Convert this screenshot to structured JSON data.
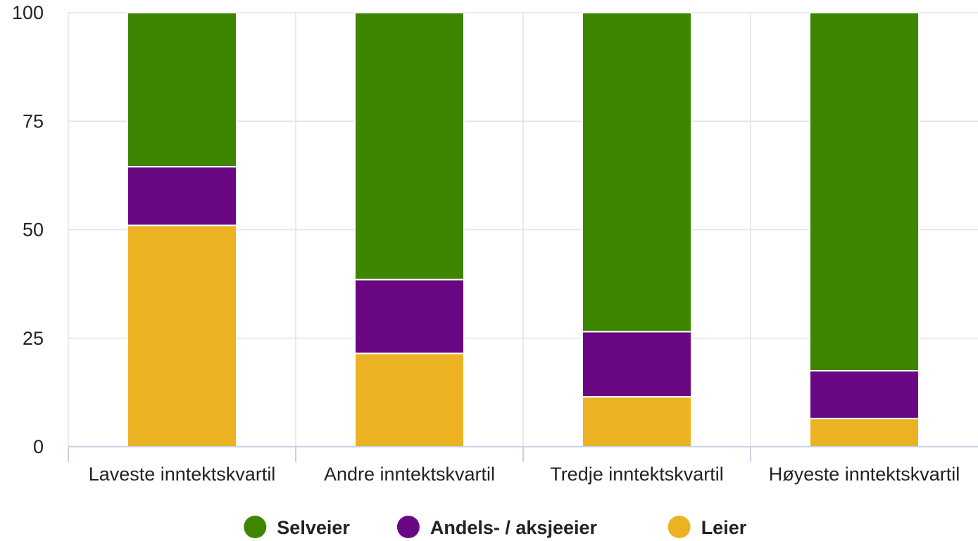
{
  "chart_data": {
    "type": "bar",
    "stacked": true,
    "categories": [
      "Laveste inntektskvartil",
      "Andre inntektskvartil",
      "Tredje inntektskvartil",
      "Høyeste inntektskvartil"
    ],
    "series": [
      {
        "name": "Leier",
        "color": "#EBB323",
        "values": [
          51,
          21.5,
          11.5,
          6.5
        ]
      },
      {
        "name": "Andels- / aksjeeier",
        "color": "#6A0783",
        "values": [
          13.5,
          17,
          15,
          11
        ]
      },
      {
        "name": "Selveier",
        "color": "#3E8500",
        "values": [
          35.5,
          61.5,
          73.5,
          82.5
        ]
      }
    ],
    "legend_order": [
      "Selveier",
      "Andels- / aksjeeier",
      "Leier"
    ],
    "y_ticks": [
      "0",
      "25",
      "50",
      "75",
      "100"
    ],
    "ylim": [
      0,
      100
    ],
    "grid": true,
    "legend_position": "bottom-center",
    "title": "",
    "xlabel": "",
    "ylabel": ""
  }
}
